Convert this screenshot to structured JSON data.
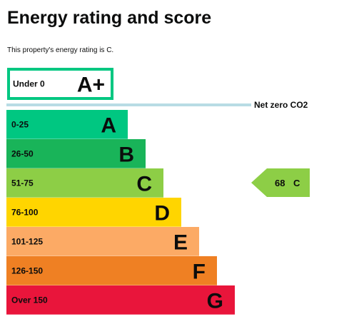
{
  "header": {
    "title": "Energy rating and score",
    "subtitle": "This property's energy rating is C."
  },
  "chart_data": {
    "type": "bar",
    "title": "Energy rating and score",
    "categories": [
      "Under 0",
      "0-25",
      "26-50",
      "51-75",
      "76-100",
      "101-125",
      "126-150",
      "Over 150"
    ],
    "bands": [
      {
        "range": "Under 0",
        "letter": "A+",
        "color": "#ffffff",
        "border": "#00c781",
        "outlined": true
      },
      {
        "range": "0-25",
        "letter": "A",
        "color": "#00c781"
      },
      {
        "range": "26-50",
        "letter": "B",
        "color": "#19b459"
      },
      {
        "range": "51-75",
        "letter": "C",
        "color": "#8dce46"
      },
      {
        "range": "76-100",
        "letter": "D",
        "color": "#ffd500"
      },
      {
        "range": "101-125",
        "letter": "E",
        "color": "#fcaa65"
      },
      {
        "range": "126-150",
        "letter": "F",
        "color": "#ef8023"
      },
      {
        "range": "Over 150",
        "letter": "G",
        "color": "#e9153b"
      }
    ],
    "net_zero": {
      "label": "Net zero CO2",
      "color": "#b8dce4"
    },
    "current": {
      "score": "68",
      "letter": "C",
      "band_index": 3,
      "color": "#8dce46"
    }
  }
}
